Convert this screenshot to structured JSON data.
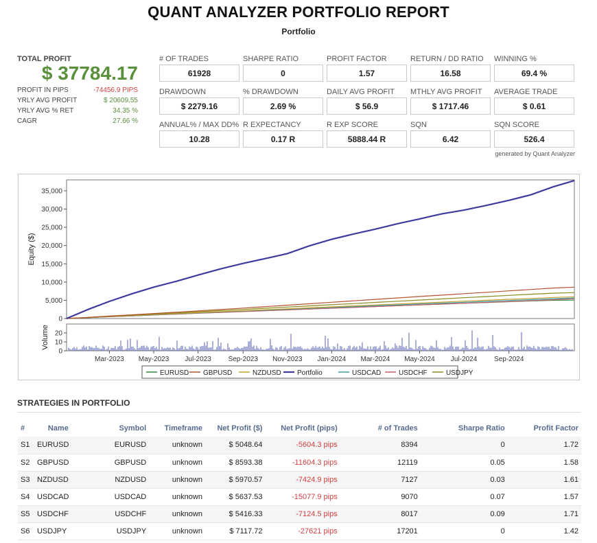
{
  "header": {
    "title": "QUANT ANALYZER PORTFOLIO REPORT",
    "subtitle": "Portfolio"
  },
  "summary": {
    "total_profit_label": "TOTAL PROFIT",
    "total_profit": "$ 37784.17",
    "rows": [
      {
        "label": "PROFIT IN PIPS",
        "value": "-74456.9 PIPS",
        "tone": "neg"
      },
      {
        "label": "YRLY AVG PROFIT",
        "value": "$ 20609.55",
        "tone": "pos"
      },
      {
        "label": "YRLY AVG % RET",
        "value": "34.35 %",
        "tone": "pos"
      },
      {
        "label": "CAGR",
        "value": "27.66 %",
        "tone": "pos"
      }
    ]
  },
  "metrics": [
    {
      "label": "# OF TRADES",
      "value": "61928"
    },
    {
      "label": "SHARPE RATIO",
      "value": "0"
    },
    {
      "label": "PROFIT FACTOR",
      "value": "1.57"
    },
    {
      "label": "RETURN / DD RATIO",
      "value": "16.58"
    },
    {
      "label": "WINNING %",
      "value": "69.4 %"
    },
    {
      "label": "DRAWDOWN",
      "value": "$ 2279.16"
    },
    {
      "label": "% DRAWDOWN",
      "value": "2.69 %"
    },
    {
      "label": "DAILY AVG PROFIT",
      "value": "$ 56.9"
    },
    {
      "label": "MTHLY AVG PROFIT",
      "value": "$ 1717.46"
    },
    {
      "label": "AVERAGE TRADE",
      "value": "$ 0.61"
    },
    {
      "label": "ANNUAL% / MAX DD%",
      "value": "10.28"
    },
    {
      "label": "R EXPECTANCY",
      "value": "0.17 R"
    },
    {
      "label": "R EXP SCORE",
      "value": "5888.44 R"
    },
    {
      "label": "SQN",
      "value": "6.42"
    },
    {
      "label": "SQN SCORE",
      "value": "526.4"
    }
  ],
  "generated_by": "generated by Quant Analyzer",
  "chart_data": {
    "type": "line",
    "ylabel": "Equity ($)",
    "volume_label": "Volume",
    "ylim": [
      0,
      38000
    ],
    "yticks": [
      0,
      5000,
      10000,
      15000,
      20000,
      25000,
      30000,
      35000
    ],
    "ytick_labels": [
      "0",
      "5,000",
      "10,000",
      "15,000",
      "20,000",
      "25,000",
      "30,000",
      "35,000"
    ],
    "volume_ylim": [
      0,
      30
    ],
    "volume_ticks": [
      0,
      10,
      20
    ],
    "xlim": [
      "2023-01-01",
      "2024-11-30"
    ],
    "x_ticks": [
      "Mar-2023",
      "May-2023",
      "Jul-2023",
      "Sep-2023",
      "Nov-2023",
      "Jan-2024",
      "Mar-2024",
      "May-2024",
      "Jul-2024",
      "Sep-2024"
    ],
    "x_tick_dates": [
      "2023-03-01",
      "2023-05-01",
      "2023-07-01",
      "2023-09-01",
      "2023-11-01",
      "2024-01-01",
      "2024-03-01",
      "2024-05-01",
      "2024-07-01",
      "2024-09-01"
    ],
    "x": [
      "2023-01-01",
      "2023-02-01",
      "2023-03-01",
      "2023-04-01",
      "2023-05-01",
      "2023-06-01",
      "2023-07-01",
      "2023-08-01",
      "2023-09-01",
      "2023-10-01",
      "2023-11-01",
      "2023-12-01",
      "2024-01-01",
      "2024-02-01",
      "2024-03-01",
      "2024-04-01",
      "2024-05-01",
      "2024-06-01",
      "2024-07-01",
      "2024-08-01",
      "2024-09-01",
      "2024-10-01",
      "2024-11-01",
      "2024-11-30"
    ],
    "legend_position": "bottom",
    "series": [
      {
        "name": "EURUSD",
        "color": "#2e8b3c",
        "values": [
          0,
          250,
          500,
          740,
          980,
          1220,
          1460,
          1700,
          1940,
          2170,
          2400,
          2620,
          2850,
          3070,
          3290,
          3510,
          3730,
          3950,
          4170,
          4380,
          4600,
          4810,
          5000,
          5048
        ]
      },
      {
        "name": "GBPUSD",
        "color": "#b5522f",
        "values": [
          0,
          330,
          680,
          1020,
          1380,
          1740,
          2100,
          2480,
          2860,
          3250,
          3650,
          4050,
          4450,
          4850,
          5250,
          5640,
          6030,
          6420,
          6810,
          7190,
          7580,
          7960,
          8350,
          8593
        ]
      },
      {
        "name": "NZDUSD",
        "color": "#c8a030",
        "values": [
          0,
          280,
          560,
          830,
          1100,
          1360,
          1620,
          1890,
          2150,
          2410,
          2680,
          2940,
          3200,
          3460,
          3720,
          3980,
          4240,
          4500,
          4760,
          5010,
          5260,
          5500,
          5780,
          5971
        ]
      },
      {
        "name": "Portfolio",
        "color": "#3f3a9e",
        "values": [
          0,
          2600,
          4700,
          6800,
          8600,
          10200,
          11900,
          13600,
          15100,
          16400,
          17800,
          19900,
          21700,
          23200,
          24500,
          26000,
          27300,
          28700,
          29700,
          31000,
          32400,
          33900,
          36100,
          37784
        ]
      },
      {
        "name": "USDCAD",
        "color": "#3aa0a0",
        "values": [
          0,
          260,
          520,
          780,
          1040,
          1300,
          1550,
          1800,
          2050,
          2300,
          2540,
          2780,
          3020,
          3260,
          3500,
          3740,
          3980,
          4220,
          4460,
          4700,
          4940,
          5180,
          5430,
          5638
        ]
      },
      {
        "name": "USDCHF",
        "color": "#c85a6a",
        "values": [
          0,
          240,
          480,
          720,
          960,
          1200,
          1440,
          1670,
          1900,
          2130,
          2360,
          2590,
          2820,
          3050,
          3280,
          3510,
          3740,
          3970,
          4200,
          4430,
          4660,
          4890,
          5150,
          5416
        ]
      },
      {
        "name": "USDJPY",
        "color": "#8a8a1f",
        "values": [
          0,
          300,
          620,
          930,
          1240,
          1550,
          1860,
          2180,
          2500,
          2820,
          3140,
          3460,
          3780,
          4100,
          4420,
          4740,
          5060,
          5380,
          5700,
          6020,
          6340,
          6660,
          6950,
          7118
        ]
      }
    ]
  },
  "strategies": {
    "section_title": "STRATEGIES IN PORTFOLIO",
    "columns": [
      "#",
      "Name",
      "Symbol",
      "Timeframe",
      "Net Profit ($)",
      "Net Profit (pips)",
      "# of Trades",
      "Sharpe Ratio",
      "Profit Factor"
    ],
    "rows": [
      [
        "S1",
        "EURUSD",
        "EURUSD",
        "unknown",
        "$ 5048.64",
        "-5604.3 pips",
        "8394",
        "0",
        "1.72"
      ],
      [
        "S2",
        "GBPUSD",
        "GBPUSD",
        "unknown",
        "$ 8593.38",
        "-11604.3 pips",
        "12119",
        "0.05",
        "1.58"
      ],
      [
        "S3",
        "NZDUSD",
        "NZDUSD",
        "unknown",
        "$ 5970.57",
        "-7424.9 pips",
        "7127",
        "0.03",
        "1.61"
      ],
      [
        "S4",
        "USDCAD",
        "USDCAD",
        "unknown",
        "$ 5637.53",
        "-15077.9 pips",
        "9070",
        "0.07",
        "1.57"
      ],
      [
        "S5",
        "USDCHF",
        "USDCHF",
        "unknown",
        "$ 5416.33",
        "-7124.5 pips",
        "8017",
        "0.09",
        "1.71"
      ],
      [
        "S6",
        "USDJPY",
        "USDJPY",
        "unknown",
        "$ 7117.72",
        "-27621 pips",
        "17201",
        "0",
        "1.42"
      ]
    ]
  }
}
